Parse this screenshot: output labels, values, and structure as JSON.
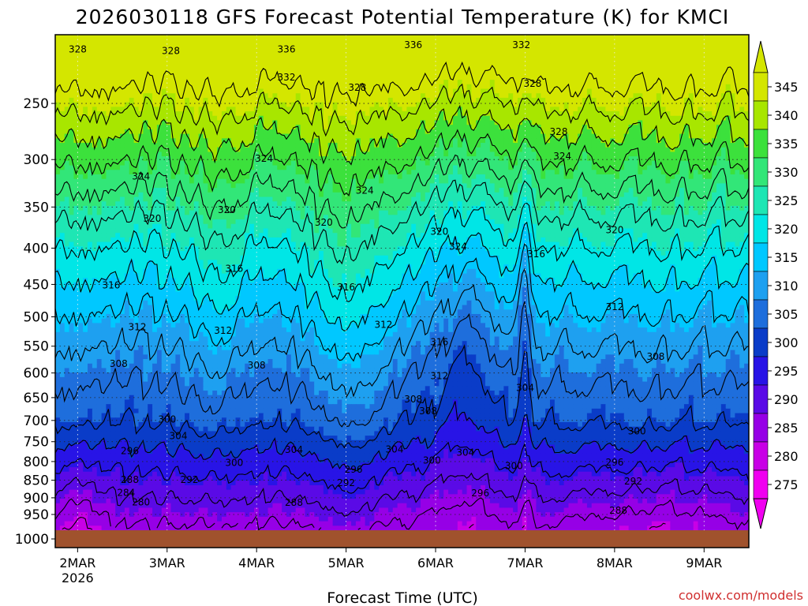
{
  "chart_data": {
    "type": "heatmap",
    "title": "2026030118 GFS Forecast Potential Temperature (K) for KMCI",
    "xlabel": "Forecast Time (UTC)",
    "ylabel": "",
    "credit": "coolwx.com/models",
    "x_range_hours": [
      0,
      186
    ],
    "x_ticks": [
      {
        "label": "2MAR",
        "sublabel": "2026",
        "hour": 6
      },
      {
        "label": "3MAR",
        "sublabel": "",
        "hour": 30
      },
      {
        "label": "4MAR",
        "sublabel": "",
        "hour": 54
      },
      {
        "label": "5MAR",
        "sublabel": "",
        "hour": 78
      },
      {
        "label": "6MAR",
        "sublabel": "",
        "hour": 102
      },
      {
        "label": "7MAR",
        "sublabel": "",
        "hour": 126
      },
      {
        "label": "8MAR",
        "sublabel": "",
        "hour": 150
      },
      {
        "label": "9MAR",
        "sublabel": "",
        "hour": 174
      }
    ],
    "y_axis": {
      "scale": "log-pressure",
      "range_hpa": [
        1000,
        200
      ],
      "ticks": [
        "250",
        "300",
        "350",
        "400",
        "450",
        "500",
        "550",
        "600",
        "650",
        "700",
        "750",
        "800",
        "850",
        "900",
        "950",
        "1000"
      ]
    },
    "colorbar": {
      "levels": [
        "345",
        "340",
        "335",
        "330",
        "325",
        "320",
        "315",
        "310",
        "305",
        "300",
        "295",
        "290",
        "285",
        "280",
        "275"
      ],
      "colors": [
        "#d4e600",
        "#a8e600",
        "#3ce13c",
        "#32e678",
        "#1ee6b4",
        "#00e6e6",
        "#00c8ff",
        "#1ea0f0",
        "#1e6edc",
        "#0a3cc8",
        "#2814e6",
        "#5a0ae6",
        "#9600e6",
        "#c800e6",
        "#f000f0"
      ]
    },
    "ground_color": "#a0522d",
    "contour_labels": [
      {
        "label": "328",
        "hour": 6,
        "p": 212
      },
      {
        "label": "328",
        "hour": 31,
        "p": 213
      },
      {
        "label": "336",
        "hour": 62,
        "p": 212
      },
      {
        "label": "332",
        "hour": 62,
        "p": 232
      },
      {
        "label": "328",
        "hour": 81,
        "p": 240
      },
      {
        "label": "336",
        "hour": 96,
        "p": 209
      },
      {
        "label": "332",
        "hour": 125,
        "p": 209
      },
      {
        "label": "328",
        "hour": 128,
        "p": 237
      },
      {
        "label": "328",
        "hour": 135,
        "p": 277
      },
      {
        "label": "324",
        "hour": 23,
        "p": 320
      },
      {
        "label": "324",
        "hour": 56,
        "p": 302
      },
      {
        "label": "324",
        "hour": 83,
        "p": 335
      },
      {
        "label": "324",
        "hour": 136,
        "p": 300
      },
      {
        "label": "320",
        "hour": 26,
        "p": 367
      },
      {
        "label": "320",
        "hour": 46,
        "p": 357
      },
      {
        "label": "320",
        "hour": 72,
        "p": 372
      },
      {
        "label": "320",
        "hour": 103,
        "p": 383
      },
      {
        "label": "320",
        "hour": 150,
        "p": 381
      },
      {
        "label": "324",
        "hour": 108,
        "p": 402
      },
      {
        "label": "316",
        "hour": 48,
        "p": 432
      },
      {
        "label": "316",
        "hour": 78,
        "p": 459
      },
      {
        "label": "316",
        "hour": 129,
        "p": 412
      },
      {
        "label": "316",
        "hour": 15,
        "p": 456
      },
      {
        "label": "312",
        "hour": 22,
        "p": 522
      },
      {
        "label": "312",
        "hour": 45,
        "p": 528
      },
      {
        "label": "312",
        "hour": 88,
        "p": 518
      },
      {
        "label": "312",
        "hour": 150,
        "p": 489
      },
      {
        "label": "316",
        "hour": 103,
        "p": 548
      },
      {
        "label": "308",
        "hour": 17,
        "p": 588
      },
      {
        "label": "308",
        "hour": 54,
        "p": 591
      },
      {
        "label": "308",
        "hour": 161,
        "p": 575
      },
      {
        "label": "312",
        "hour": 103,
        "p": 612
      },
      {
        "label": "308",
        "hour": 96,
        "p": 660
      },
      {
        "label": "304",
        "hour": 126,
        "p": 636
      },
      {
        "label": "308",
        "hour": 100,
        "p": 686
      },
      {
        "label": "300",
        "hour": 30,
        "p": 705
      },
      {
        "label": "304",
        "hour": 33,
        "p": 744
      },
      {
        "label": "304",
        "hour": 64,
        "p": 778
      },
      {
        "label": "304",
        "hour": 91,
        "p": 777
      },
      {
        "label": "304",
        "hour": 110,
        "p": 785
      },
      {
        "label": "300",
        "hour": 156,
        "p": 732
      },
      {
        "label": "296",
        "hour": 20,
        "p": 781
      },
      {
        "label": "300",
        "hour": 48,
        "p": 812
      },
      {
        "label": "296",
        "hour": 80,
        "p": 829
      },
      {
        "label": "300",
        "hour": 101,
        "p": 805
      },
      {
        "label": "300",
        "hour": 123,
        "p": 820
      },
      {
        "label": "296",
        "hour": 150,
        "p": 810
      },
      {
        "label": "288",
        "hour": 20,
        "p": 858
      },
      {
        "label": "292",
        "hour": 36,
        "p": 858
      },
      {
        "label": "292",
        "hour": 78,
        "p": 866
      },
      {
        "label": "296",
        "hour": 114,
        "p": 896
      },
      {
        "label": "292",
        "hour": 155,
        "p": 862
      },
      {
        "label": "284",
        "hour": 19,
        "p": 895
      },
      {
        "label": "280",
        "hour": 23,
        "p": 922
      },
      {
        "label": "288",
        "hour": 64,
        "p": 924
      },
      {
        "label": "288",
        "hour": 151,
        "p": 947
      }
    ]
  }
}
